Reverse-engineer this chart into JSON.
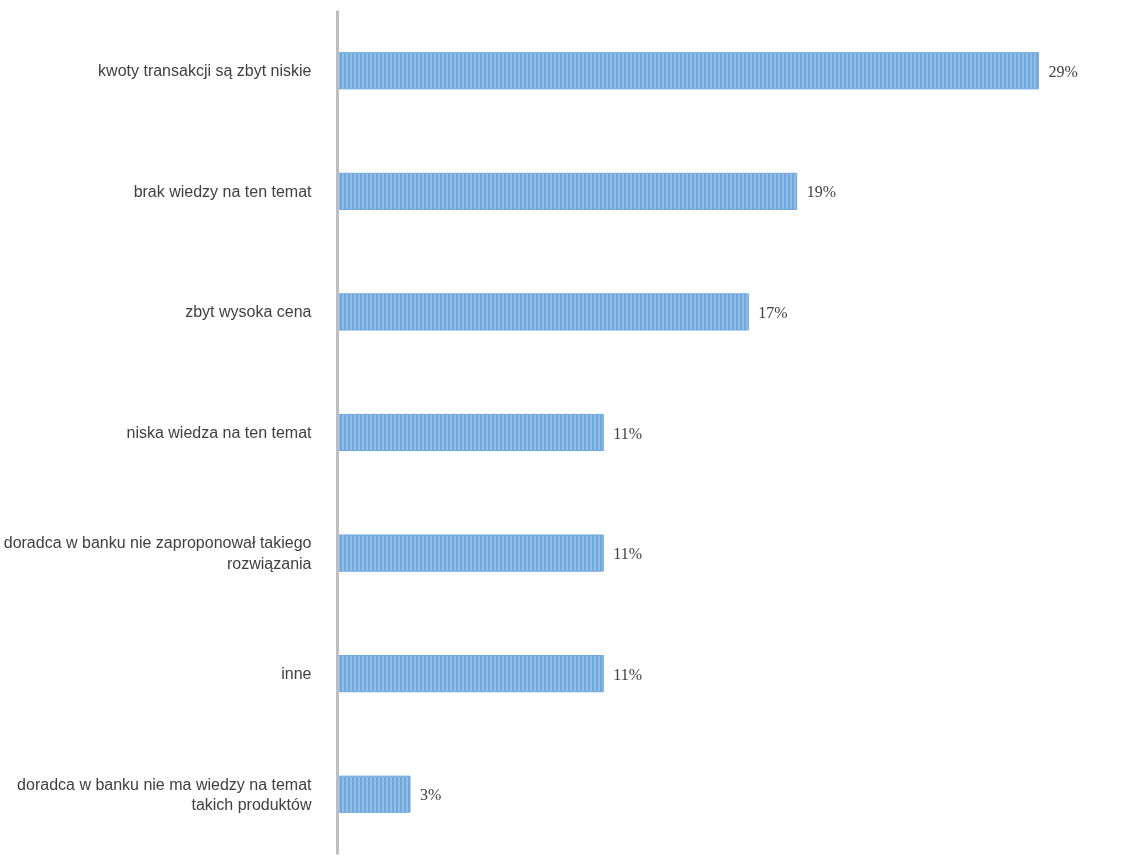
{
  "chart_data": {
    "type": "bar",
    "orientation": "horizontal",
    "categories": [
      "kwoty transakcji są zbyt niskie",
      "brak wiedzy na ten temat",
      "zbyt wysoka cena",
      "niska wiedza na ten temat",
      "doradca w banku nie zaproponował takiego rozwiązania",
      "inne",
      "doradca w banku nie ma wiedzy na temat takich produktów"
    ],
    "values": [
      29,
      19,
      17,
      11,
      11,
      11,
      3
    ],
    "value_labels": [
      "29%",
      "19%",
      "17%",
      "11%",
      "11%",
      "11%",
      "3%"
    ],
    "color": "#6fa8dc",
    "tick_labels": "y"
  }
}
